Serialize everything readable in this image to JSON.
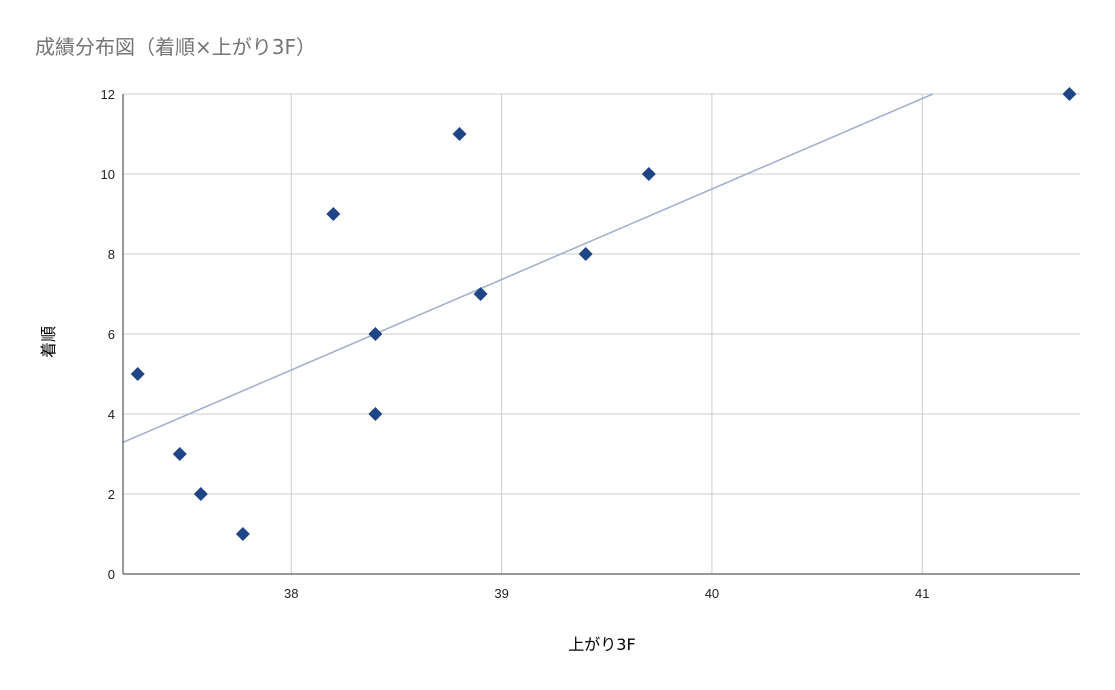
{
  "chart_data": {
    "type": "scatter",
    "title": "成績分布図（着順×上がり3F）",
    "xlabel": "上がり3F",
    "ylabel": "着順",
    "xlim": [
      37.2,
      41.75
    ],
    "ylim": [
      0,
      12
    ],
    "x_ticks": [
      38,
      39,
      40,
      41
    ],
    "y_ticks": [
      0,
      2,
      4,
      6,
      8,
      10,
      12
    ],
    "grid": true,
    "legend": "none",
    "marker": "diamond",
    "series": [
      {
        "points": [
          {
            "x": 37.27,
            "y": 5
          },
          {
            "x": 37.47,
            "y": 3
          },
          {
            "x": 37.57,
            "y": 2
          },
          {
            "x": 37.77,
            "y": 1
          },
          {
            "x": 38.2,
            "y": 9
          },
          {
            "x": 38.4,
            "y": 6
          },
          {
            "x": 38.4,
            "y": 4
          },
          {
            "x": 38.8,
            "y": 11
          },
          {
            "x": 38.9,
            "y": 7
          },
          {
            "x": 39.4,
            "y": 8
          },
          {
            "x": 39.7,
            "y": 10
          },
          {
            "x": 41.7,
            "y": 12
          }
        ]
      }
    ],
    "trendline": {
      "type": "linear",
      "x": [
        37.2,
        41.05
      ],
      "y": [
        3.29,
        12
      ]
    },
    "colors": {
      "points": "#1f4587",
      "trendline": "#a2b2cc",
      "grid": "#cccccc"
    }
  }
}
